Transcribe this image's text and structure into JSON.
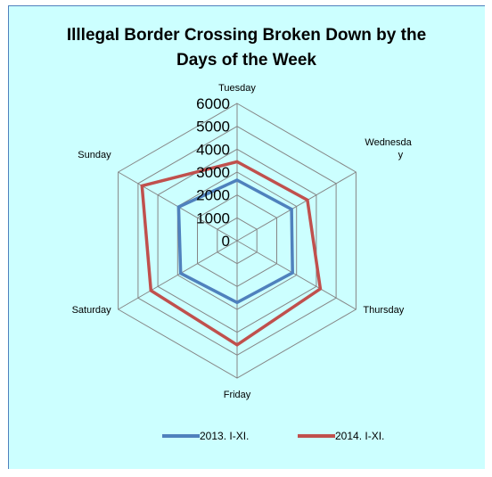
{
  "chart_data": {
    "type": "radar",
    "title_lines": [
      "Illlegal Border Crossing Broken Down by the",
      "Days of the Week"
    ],
    "categories": [
      "Tuesday",
      "Wednesday",
      "Thursday",
      "Friday",
      "Saturday",
      "Sunday"
    ],
    "category_label_lines": [
      [
        "Tuesday"
      ],
      [
        "Wednesda",
        "y"
      ],
      [
        "Thursday"
      ],
      [
        "Friday"
      ],
      [
        "Saturday"
      ],
      [
        "Sunday"
      ]
    ],
    "r_ticks": [
      0,
      1000,
      2000,
      3000,
      4000,
      5000,
      6000
    ],
    "rlim": [
      0,
      6000
    ],
    "series": [
      {
        "name": "2013. I-XI.",
        "color": "#4f81bd",
        "values": [
          2650,
          2750,
          2800,
          2700,
          2850,
          2950
        ]
      },
      {
        "name": "2014. I-XI.",
        "color": "#c0504d",
        "values": [
          3450,
          3550,
          4200,
          4550,
          4350,
          4800
        ]
      }
    ],
    "legend_position": "bottom",
    "grid": true,
    "background_color": "#ccffff",
    "grid_color": "#868686"
  }
}
